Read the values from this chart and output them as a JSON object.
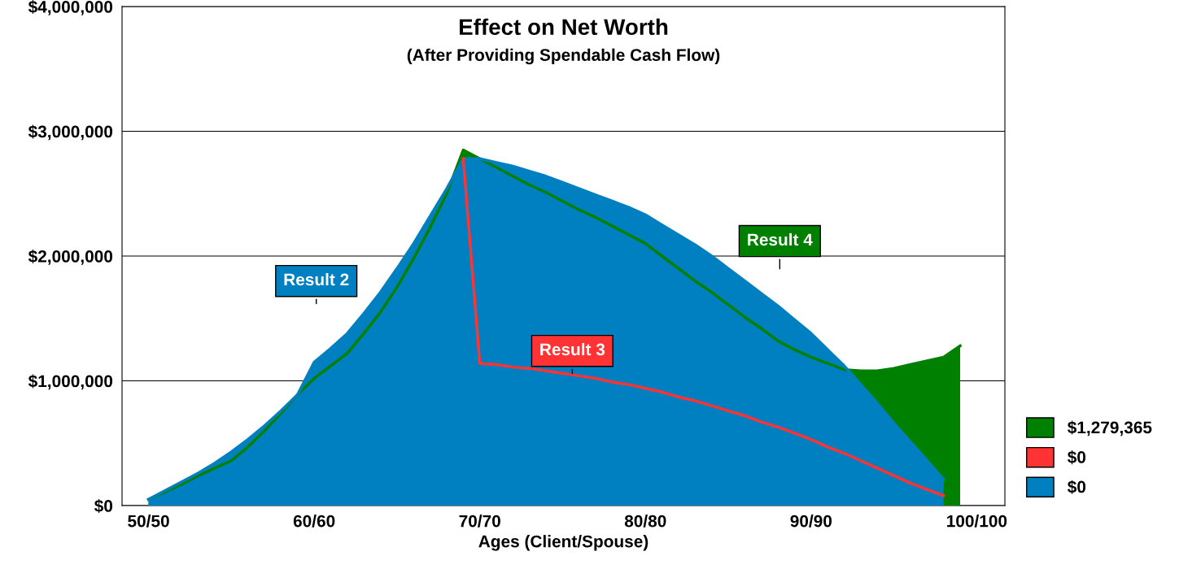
{
  "chart_data": {
    "type": "area",
    "title": "Effect on Net Worth",
    "subtitle": "(After Providing Spendable Cash Flow)",
    "xlabel": "Ages (Client/Spouse)",
    "categories": [
      "50/50",
      null,
      null,
      null,
      null,
      null,
      null,
      null,
      null,
      null,
      "60/60",
      null,
      null,
      null,
      null,
      null,
      null,
      null,
      null,
      null,
      "70/70",
      null,
      null,
      null,
      null,
      null,
      null,
      null,
      null,
      null,
      "80/80",
      null,
      null,
      null,
      null,
      null,
      null,
      null,
      null,
      null,
      "90/90",
      null,
      null,
      null,
      null,
      null,
      null,
      null,
      null,
      null,
      "100/100"
    ],
    "series": [
      {
        "name": "$0",
        "color": "#0080c0",
        "values": [
          50000,
          120000,
          190000,
          260000,
          340000,
          430000,
          530000,
          640000,
          760000,
          890000,
          1150000,
          1260000,
          1380000,
          1540000,
          1710000,
          1900000,
          2100000,
          2320000,
          2540000,
          2780000,
          2780000,
          2750000,
          2720000,
          2680000,
          2640000,
          2590000,
          2540000,
          2490000,
          2440000,
          2390000,
          2330000,
          2250000,
          2170000,
          2090000,
          2000000,
          1900000,
          1800000,
          1700000,
          1600000,
          1490000,
          1380000,
          1250000,
          1120000,
          970000,
          820000,
          660000,
          510000,
          360000,
          210000,
          null,
          null
        ]
      },
      {
        "name": "$0",
        "color": "#ff3333",
        "type": "line",
        "values": [
          null,
          null,
          null,
          null,
          null,
          null,
          null,
          null,
          null,
          null,
          null,
          null,
          null,
          null,
          null,
          null,
          null,
          null,
          null,
          2780000,
          1140000,
          1130000,
          1110000,
          1100000,
          1080000,
          1060000,
          1040000,
          1020000,
          990000,
          970000,
          940000,
          910000,
          870000,
          840000,
          800000,
          760000,
          720000,
          670000,
          630000,
          580000,
          530000,
          470000,
          420000,
          360000,
          300000,
          240000,
          180000,
          130000,
          80000,
          null,
          null
        ]
      },
      {
        "name": "$1,279,365",
        "color": "#008000",
        "values": [
          50000,
          110000,
          170000,
          240000,
          300000,
          360000,
          470000,
          600000,
          740000,
          890000,
          1020000,
          1120000,
          1220000,
          1380000,
          1550000,
          1750000,
          1980000,
          2230000,
          2500000,
          2850000,
          2780000,
          2710000,
          2640000,
          2570000,
          2510000,
          2440000,
          2370000,
          2310000,
          2240000,
          2170000,
          2100000,
          2000000,
          1900000,
          1800000,
          1710000,
          1610000,
          1510000,
          1420000,
          1320000,
          1250000,
          1190000,
          1140000,
          1090000,
          1080000,
          1080000,
          1100000,
          1130000,
          1160000,
          1190000,
          1280000,
          null
        ]
      }
    ],
    "annotations": [
      "Result 2",
      "Result 3",
      "Result 4"
    ],
    "ylim": [
      0,
      4000000
    ],
    "yticks": [
      {
        "value": 0,
        "label": "$0"
      },
      {
        "value": 1000000,
        "label": "$1,000,000"
      },
      {
        "value": 2000000,
        "label": "$2,000,000"
      },
      {
        "value": 3000000,
        "label": "$3,000,000"
      },
      {
        "value": 4000000,
        "label": "$4,000,000"
      }
    ],
    "grid": "y",
    "legend": "right"
  }
}
